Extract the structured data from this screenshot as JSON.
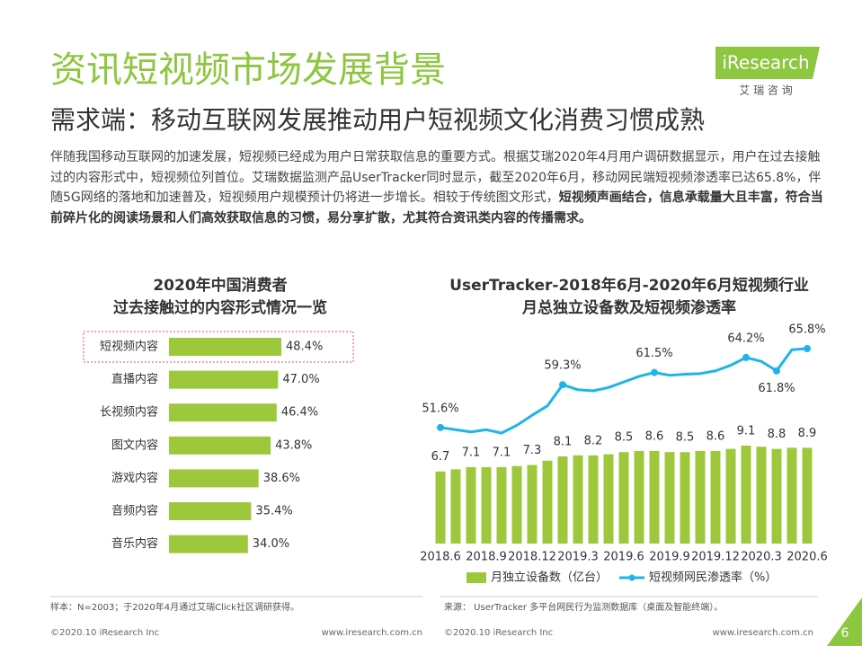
{
  "header": {
    "title": "资讯短视频市场发展背景",
    "subtitle": "需求端：移动互联网发展推动用户短视频文化消费习惯成熟",
    "logo": "iResearch",
    "logo_sub": "艾 瑞 咨 询"
  },
  "paragraph": {
    "text": "伴随我国移动互联网的加速发展，短视频已经成为用户日常获取信息的重要方式。根据艾瑞2020年4月用户调研数据显示，用户在过去接触过的内容形式中，短视频位列首位。艾瑞数据监测产品UserTracker同时显示，截至2020年6月，移动网民端短视频渗透率已达65.8%，伴随5G网络的落地和加速普及，短视频用户规模预计仍将进一步增长。相较于传统图文形式，",
    "bold": "短视频声画结合，信息承载量大且丰富，符合当前碎片化的阅读场景和人们高效获取信息的习惯，易分享扩散，尤其符合资讯类内容的传播需求。"
  },
  "chart_data": [
    {
      "type": "hbar",
      "title": [
        "2020年中国消费者",
        "过去接触过的内容形式情况一览"
      ],
      "categories": [
        "短视频内容",
        "直播内容",
        "长视频内容",
        "图文内容",
        "游戏内容",
        "音频内容",
        "音乐内容"
      ],
      "values": [
        48.4,
        47.0,
        46.4,
        43.8,
        38.6,
        35.4,
        34.0
      ],
      "value_labels": [
        "48.4%",
        "47.0%",
        "46.4%",
        "43.8%",
        "38.6%",
        "35.4%",
        "34.0%"
      ],
      "color": "#9dc83c"
    },
    {
      "type": "combo",
      "title": [
        "UserTracker-2018年6月-2020年6月短视频行业",
        "月总独立设备数及短视频渗透率"
      ],
      "categories": [
        "2018.6",
        null,
        null,
        "2018.9",
        null,
        null,
        "2018.12",
        null,
        null,
        "2019.3",
        null,
        null,
        "2019.6",
        null,
        null,
        "2019.9",
        null,
        null,
        "2019.12",
        null,
        null,
        "2020.3",
        null,
        null,
        "2020.6"
      ],
      "series": [
        {
          "name": "月独立设备数（亿台）",
          "color": "#9dc83c",
          "kind": "bar",
          "values": [
            6.7,
            6.9,
            7.1,
            7.1,
            7.1,
            7.2,
            7.3,
            7.7,
            8.1,
            8.2,
            8.2,
            8.3,
            8.5,
            8.6,
            8.6,
            8.5,
            8.5,
            8.6,
            8.6,
            8.8,
            9.1,
            9.0,
            8.8,
            8.9,
            8.9
          ],
          "value_labels": [
            "6.7",
            null,
            "7.1",
            null,
            "7.1",
            null,
            "7.3",
            null,
            "8.1",
            null,
            "8.2",
            null,
            "8.5",
            null,
            "8.6",
            null,
            "8.5",
            null,
            "8.6",
            null,
            "9.1",
            null,
            "8.8",
            null,
            "8.9"
          ]
        },
        {
          "name": "短视频网民渗透率（%）",
          "color": "#1eb4ea",
          "kind": "line",
          "values": [
            51.6,
            51.2,
            50.8,
            51.2,
            50.6,
            52.0,
            53.8,
            55.5,
            59.3,
            58.4,
            58.2,
            58.8,
            59.8,
            60.8,
            61.5,
            61.0,
            61.2,
            61.3,
            61.8,
            62.8,
            64.2,
            63.5,
            61.8,
            65.6,
            65.8
          ],
          "value_labels": [
            "51.6%",
            null,
            null,
            null,
            null,
            null,
            null,
            null,
            "59.3%",
            null,
            null,
            null,
            null,
            null,
            "61.5%",
            null,
            null,
            null,
            null,
            null,
            "64.2%",
            null,
            "61.8%",
            null,
            "65.8%"
          ]
        }
      ]
    }
  ],
  "footer": {
    "notes": [
      "样本：N=2003；于2020年4月通过艾瑞Click社区调研获得。",
      "来源： UserTracker 多平台网民行为监测数据库（桌面及智能终端）。"
    ],
    "copyright": [
      "©2020.10 iResearch Inc",
      "©2020.10 iResearch Inc"
    ],
    "url": [
      "www.iresearch.com.cn",
      "www.iresearch.com.cn"
    ],
    "page": "6"
  }
}
